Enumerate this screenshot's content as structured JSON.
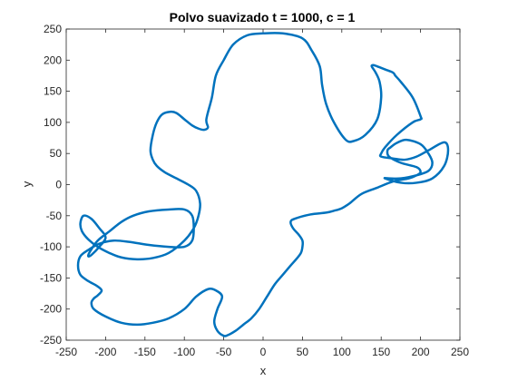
{
  "chart_data": {
    "type": "line",
    "title": "Polvo suavizado t = 1000, c = 1",
    "xlabel": "x",
    "ylabel": "y",
    "xlim": [
      -250,
      250
    ],
    "ylim": [
      -250,
      250
    ],
    "xticks": [
      -250,
      -200,
      -150,
      -100,
      -50,
      0,
      50,
      100,
      150,
      200,
      250
    ],
    "yticks": [
      -250,
      -200,
      -150,
      -100,
      -50,
      0,
      50,
      100,
      150,
      200,
      250
    ],
    "grid": false,
    "line_color": "#0072BD",
    "series": [
      {
        "closed": true,
        "x": [
          0,
          25,
          50,
          62,
          72,
          75,
          80,
          90,
          105,
          115,
          130,
          145,
          150,
          148,
          143,
          138,
          140,
          145,
          155,
          165,
          168,
          175,
          190,
          200,
          200,
          190,
          170,
          155,
          150,
          150,
          165,
          180,
          195,
          210,
          230,
          235,
          230,
          215,
          195,
          175,
          155,
          160,
          175,
          195,
          210,
          215,
          210,
          200,
          182,
          170,
          162,
          158,
          160,
          175,
          195,
          200,
          195,
          185,
          165,
          145,
          125,
          110,
          100,
          90,
          80,
          60,
          40,
          35,
          38,
          45,
          50,
          50,
          48,
          42,
          35,
          25,
          15,
          5,
          -5,
          -15,
          -25,
          -35,
          -45,
          -50,
          -58,
          -62,
          -58,
          -52,
          -60,
          -70,
          -85,
          -100,
          -120,
          -140,
          -160,
          -180,
          -200,
          -215,
          -218,
          -215,
          -210,
          -205,
          -212,
          -222,
          -232,
          -235,
          -232,
          -222,
          -208,
          -190,
          -170,
          -145,
          -120,
          -100,
          -90,
          -88,
          -90,
          -100,
          -120,
          -145,
          -165,
          -180,
          -195,
          -210,
          -220,
          -222,
          -218,
          -208,
          -200,
          -208,
          -218,
          -228,
          -232,
          -230,
          -222,
          -210,
          -195,
          -180,
          -160,
          -140,
          -120,
          -100,
          -88,
          -82,
          -80,
          -85,
          -95,
          -110,
          -125,
          -135,
          -140,
          -143,
          -140,
          -135,
          -128,
          -118,
          -110,
          -100,
          -90,
          -82,
          -75,
          -70,
          -72,
          -65,
          -60,
          -50,
          -38,
          -20
        ],
        "y": [
          243,
          243,
          235,
          215,
          190,
          160,
          130,
          100,
          72,
          70,
          80,
          105,
          140,
          165,
          180,
          190,
          192,
          190,
          185,
          180,
          175,
          165,
          140,
          110,
          105,
          100,
          80,
          60,
          50,
          45,
          42,
          40,
          45,
          55,
          68,
          55,
          30,
          10,
          3,
          3,
          10,
          10,
          10,
          15,
          22,
          35,
          50,
          65,
          72,
          67,
          60,
          55,
          45,
          35,
          28,
          20,
          15,
          10,
          5,
          -5,
          -15,
          -30,
          -38,
          -42,
          -45,
          -48,
          -55,
          -60,
          -70,
          -80,
          -90,
          -100,
          -110,
          -120,
          -130,
          -145,
          -160,
          -180,
          -200,
          -215,
          -225,
          -235,
          -242,
          -243,
          -235,
          -220,
          -200,
          -180,
          -170,
          -168,
          -180,
          -200,
          -215,
          -222,
          -225,
          -222,
          -212,
          -200,
          -190,
          -183,
          -178,
          -170,
          -162,
          -155,
          -145,
          -130,
          -115,
          -105,
          -95,
          -90,
          -92,
          -97,
          -100,
          -100,
          -90,
          -70,
          -50,
          -40,
          -40,
          -43,
          -50,
          -60,
          -75,
          -90,
          -108,
          -115,
          -113,
          -100,
          -85,
          -70,
          -55,
          -50,
          -62,
          -75,
          -88,
          -100,
          -110,
          -117,
          -120,
          -118,
          -110,
          -90,
          -70,
          -50,
          -30,
          -10,
          0,
          10,
          20,
          30,
          40,
          55,
          80,
          100,
          113,
          117,
          115,
          105,
          95,
          90,
          88,
          92,
          105,
          140,
          175,
          200,
          225,
          240
        ]
      }
    ]
  }
}
